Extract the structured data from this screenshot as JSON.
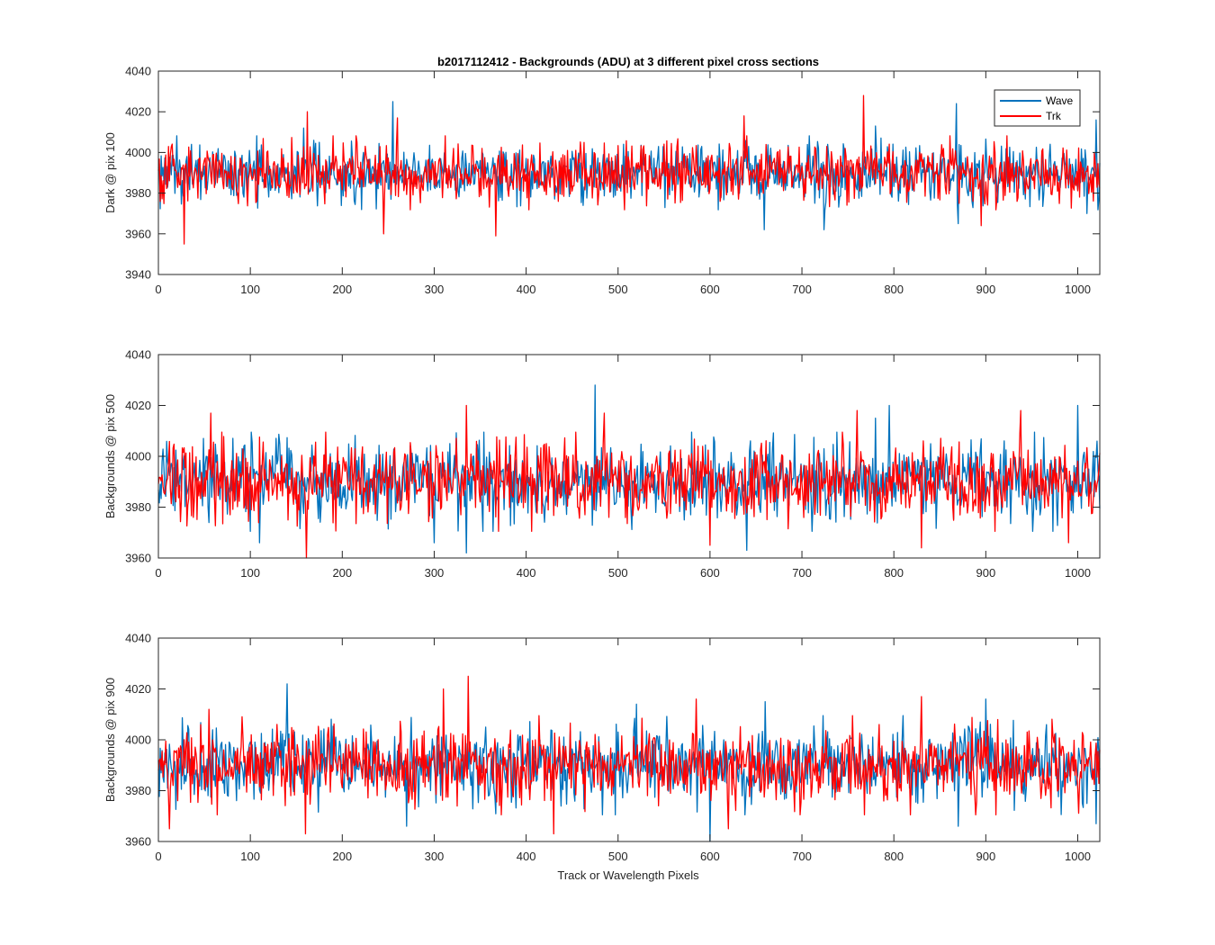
{
  "figure": {
    "title": "b2017112412 - Backgrounds (ADU) at 3 different pixel cross sections",
    "xlabel": "Track or Wavelength Pixels"
  },
  "colors": {
    "wave": "#0072BD",
    "trk": "#FF0000",
    "axis": "#262626",
    "background": "#FFFFFF"
  },
  "chart_data": [
    {
      "type": "line",
      "title": "b2017112412 - Backgrounds (ADU) at 3 different pixel cross sections",
      "ylabel": "Dark @ pix 100",
      "xlabel": "",
      "xlim": [
        0,
        1024
      ],
      "ylim": [
        3940,
        4040
      ],
      "xticks": [
        0,
        100,
        200,
        300,
        400,
        500,
        600,
        700,
        800,
        900,
        1000
      ],
      "yticks": [
        3940,
        3960,
        3980,
        4000,
        4020,
        4040
      ],
      "legend": {
        "position": "top-right",
        "entries": [
          "Wave",
          "Trk"
        ]
      },
      "grid": false,
      "series": [
        {
          "name": "Wave",
          "color": "#0072BD",
          "mean": 3990,
          "std": 7,
          "x_range": [
            0,
            1024
          ],
          "peaks": [
            [
              255,
              4025
            ],
            [
              868,
              4024
            ],
            [
              158,
              4012
            ],
            [
              780,
              4013
            ],
            [
              1020,
              4016
            ]
          ],
          "troughs": [
            [
              659,
              3962
            ],
            [
              724,
              3962
            ],
            [
              870,
              3965
            ],
            [
              1010,
              3970
            ]
          ]
        },
        {
          "name": "Trk",
          "color": "#FF0000",
          "mean": 3990,
          "std": 7,
          "x_range": [
            0,
            1024
          ],
          "peaks": [
            [
              767,
              4028
            ],
            [
              162,
              4020
            ],
            [
              637,
              4018
            ],
            [
              260,
              4017
            ]
          ],
          "troughs": [
            [
              28,
              3955
            ],
            [
              367,
              3959
            ],
            [
              245,
              3960
            ],
            [
              895,
              3964
            ]
          ]
        }
      ]
    },
    {
      "type": "line",
      "title": "",
      "ylabel": "Backgrounds @ pix 500",
      "xlabel": "",
      "xlim": [
        0,
        1024
      ],
      "ylim": [
        3960,
        4040
      ],
      "xticks": [
        0,
        100,
        200,
        300,
        400,
        500,
        600,
        700,
        800,
        900,
        1000
      ],
      "yticks": [
        3960,
        3980,
        4000,
        4020,
        4040
      ],
      "grid": false,
      "series": [
        {
          "name": "Wave",
          "color": "#0072BD",
          "mean": 3990,
          "std": 7.5,
          "x_range": [
            0,
            1024
          ],
          "peaks": [
            [
              475,
              4028
            ],
            [
              1000,
              4020
            ],
            [
              795,
              4020
            ],
            [
              780,
              4015
            ]
          ],
          "troughs": [
            [
              335,
              3962
            ],
            [
              640,
              3963
            ],
            [
              110,
              3966
            ],
            [
              300,
              3966
            ]
          ]
        },
        {
          "name": "Trk",
          "color": "#FF0000",
          "mean": 3990,
          "std": 7.5,
          "x_range": [
            0,
            1024
          ],
          "peaks": [
            [
              335,
              4020
            ],
            [
              57,
              4017
            ],
            [
              485,
              4017
            ],
            [
              760,
              4018
            ],
            [
              938,
              4018
            ]
          ],
          "troughs": [
            [
              161,
              3960
            ],
            [
              830,
              3964
            ],
            [
              600,
              3965
            ],
            [
              990,
              3966
            ]
          ]
        }
      ]
    },
    {
      "type": "line",
      "title": "",
      "ylabel": "Backgrounds @ pix 900",
      "xlabel": "Track or Wavelength Pixels",
      "xlim": [
        0,
        1024
      ],
      "ylim": [
        3960,
        4040
      ],
      "xticks": [
        0,
        100,
        200,
        300,
        400,
        500,
        600,
        700,
        800,
        900,
        1000
      ],
      "yticks": [
        3960,
        3980,
        4000,
        4020,
        4040
      ],
      "grid": false,
      "series": [
        {
          "name": "Wave",
          "color": "#0072BD",
          "mean": 3990,
          "std": 7.5,
          "x_range": [
            0,
            1024
          ],
          "peaks": [
            [
              140,
              4022
            ],
            [
              660,
              4015
            ],
            [
              900,
              4016
            ],
            [
              520,
              4014
            ]
          ],
          "troughs": [
            [
              600,
              3959
            ],
            [
              870,
              3966
            ],
            [
              1020,
              3967
            ],
            [
              270,
              3966
            ]
          ]
        },
        {
          "name": "Trk",
          "color": "#FF0000",
          "mean": 3990,
          "std": 7.5,
          "x_range": [
            0,
            1024
          ],
          "peaks": [
            [
              337,
              4025
            ],
            [
              310,
              4020
            ],
            [
              830,
              4017
            ],
            [
              55,
              4012
            ],
            [
              585,
              4016
            ]
          ],
          "troughs": [
            [
              430,
              3963
            ],
            [
              160,
              3963
            ],
            [
              12,
              3965
            ],
            [
              620,
              3965
            ]
          ]
        }
      ]
    }
  ]
}
